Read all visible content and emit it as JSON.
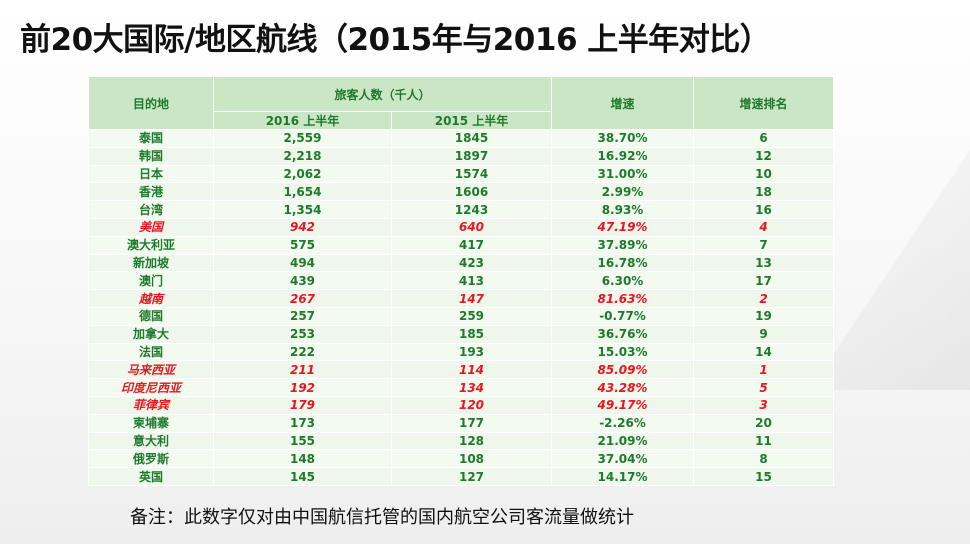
{
  "title": "前20大国际/地区航线（2015年与2016 上半年对比）",
  "table": {
    "headers": {
      "destination": "目的地",
      "passengers": "旅客人数（千人）",
      "y2016": "2016 上半年",
      "y2015": "2015 上半年",
      "growth": "增速",
      "rank": "增速排名"
    },
    "rows": [
      {
        "dest": "泰国",
        "v2016": "2,559",
        "v2015": "1845",
        "growth": "38.70%",
        "rank": "6",
        "highlight": false
      },
      {
        "dest": "韩国",
        "v2016": "2,218",
        "v2015": "1897",
        "growth": "16.92%",
        "rank": "12",
        "highlight": false
      },
      {
        "dest": "日本",
        "v2016": "2,062",
        "v2015": "1574",
        "growth": "31.00%",
        "rank": "10",
        "highlight": false
      },
      {
        "dest": "香港",
        "v2016": "1,654",
        "v2015": "1606",
        "growth": "2.99%",
        "rank": "18",
        "highlight": false
      },
      {
        "dest": "台湾",
        "v2016": "1,354",
        "v2015": "1243",
        "growth": "8.93%",
        "rank": "16",
        "highlight": false
      },
      {
        "dest": "美国",
        "v2016": "942",
        "v2015": "640",
        "growth": "47.19%",
        "rank": "4",
        "highlight": true
      },
      {
        "dest": "澳大利亚",
        "v2016": "575",
        "v2015": "417",
        "growth": "37.89%",
        "rank": "7",
        "highlight": false
      },
      {
        "dest": "新加坡",
        "v2016": "494",
        "v2015": "423",
        "growth": "16.78%",
        "rank": "13",
        "highlight": false
      },
      {
        "dest": "澳门",
        "v2016": "439",
        "v2015": "413",
        "growth": "6.30%",
        "rank": "17",
        "highlight": false
      },
      {
        "dest": "越南",
        "v2016": "267",
        "v2015": "147",
        "growth": "81.63%",
        "rank": "2",
        "highlight": true
      },
      {
        "dest": "德国",
        "v2016": "257",
        "v2015": "259",
        "growth": "-0.77%",
        "rank": "19",
        "highlight": false
      },
      {
        "dest": "加拿大",
        "v2016": "253",
        "v2015": "185",
        "growth": "36.76%",
        "rank": "9",
        "highlight": false
      },
      {
        "dest": "法国",
        "v2016": "222",
        "v2015": "193",
        "growth": "15.03%",
        "rank": "14",
        "highlight": false
      },
      {
        "dest": "马来西亚",
        "v2016": "211",
        "v2015": "114",
        "growth": "85.09%",
        "rank": "1",
        "highlight": true
      },
      {
        "dest": "印度尼西亚",
        "v2016": "192",
        "v2015": "134",
        "growth": "43.28%",
        "rank": "5",
        "highlight": true
      },
      {
        "dest": "菲律宾",
        "v2016": "179",
        "v2015": "120",
        "growth": "49.17%",
        "rank": "3",
        "highlight": true
      },
      {
        "dest": "柬埔寨",
        "v2016": "173",
        "v2015": "177",
        "growth": "-2.26%",
        "rank": "20",
        "highlight": false
      },
      {
        "dest": "意大利",
        "v2016": "155",
        "v2015": "128",
        "growth": "21.09%",
        "rank": "11",
        "highlight": false
      },
      {
        "dest": "俄罗斯",
        "v2016": "148",
        "v2015": "108",
        "growth": "37.04%",
        "rank": "8",
        "highlight": false
      },
      {
        "dest": "英国",
        "v2016": "145",
        "v2015": "127",
        "growth": "14.17%",
        "rank": "15",
        "highlight": false
      }
    ]
  },
  "note": "备注：此数字仅对由中国航信托管的国内航空公司客流量做统计",
  "colors": {
    "header_bg": "#cbe6c5",
    "row_bg": "#eff7ec",
    "text_green": "#1e7a2c",
    "highlight_red": "#e8161e"
  }
}
